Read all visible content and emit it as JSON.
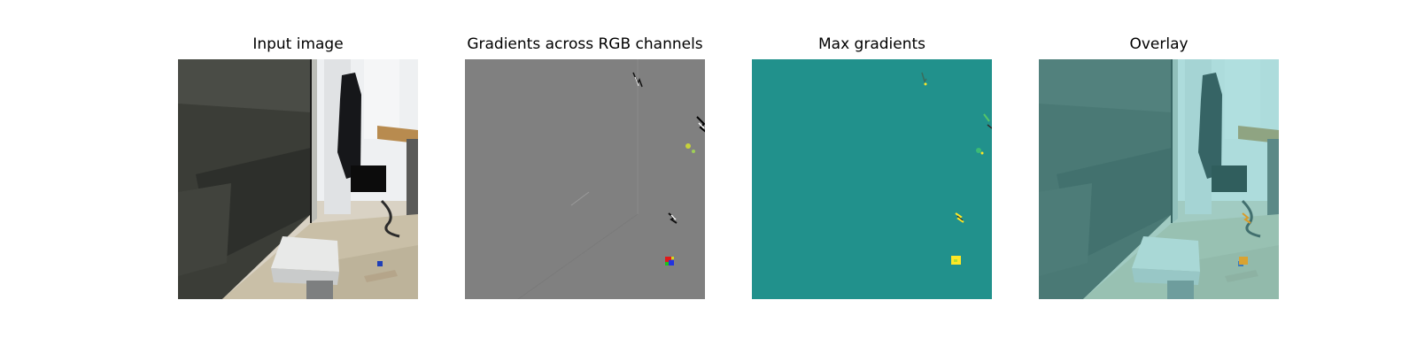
{
  "panels": [
    {
      "title": "Input image"
    },
    {
      "title": "Gradients across RGB channels"
    },
    {
      "title": "Max gradients"
    },
    {
      "title": "Overlay"
    }
  ],
  "colors": {
    "gradient_background": "#808080",
    "max_gradient_background": "#21918c",
    "max_gradient_peak": "#fde725",
    "overlay_tint": "#5ec4c0"
  }
}
